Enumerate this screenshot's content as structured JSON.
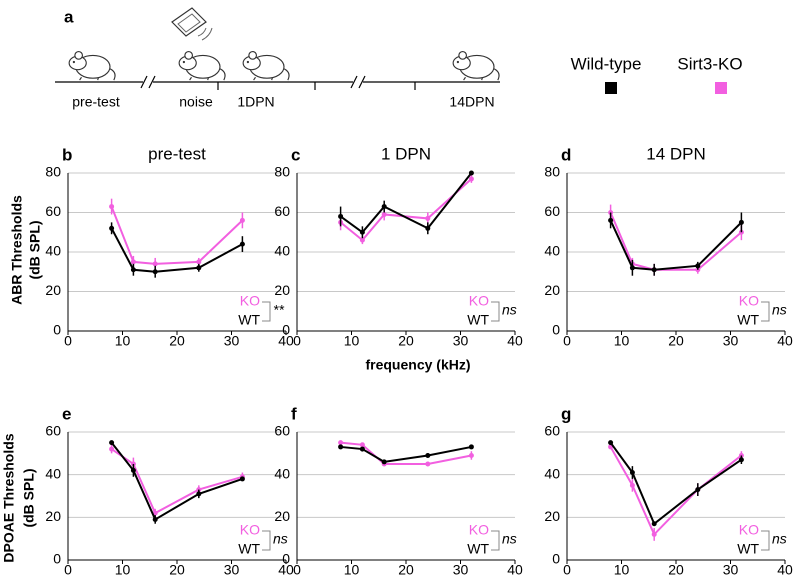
{
  "panel_a": {
    "letter": "a",
    "labels": [
      "pre-test",
      "noise",
      "1DPN",
      "14DPN"
    ]
  },
  "legend": [
    {
      "name": "Wild-type",
      "color": "#000000"
    },
    {
      "name": "Sirt3-KO",
      "color": "#f25fe0"
    }
  ],
  "row_labels": [
    [
      "ABR Thresholds",
      "(dB SPL)"
    ],
    [
      "DPOAE Thresholds",
      "(dB SPL)"
    ]
  ],
  "x_axis_label": "frequency (kHz)",
  "chart_data": [
    {
      "type": "line",
      "letter": "b",
      "title": "pre-test",
      "x": [
        8,
        12,
        16,
        24,
        32
      ],
      "xlim": [
        0,
        40
      ],
      "xticks": [
        0,
        10,
        20,
        30,
        40
      ],
      "ylim": [
        0,
        80
      ],
      "yticks": [
        0,
        20,
        40,
        60,
        80
      ],
      "grid": true,
      "annotation": "**",
      "series": [
        {
          "name": "KO",
          "color": "#f25fe0",
          "values": [
            63,
            35,
            34,
            35,
            56
          ],
          "errors": [
            4,
            3,
            3,
            2,
            4
          ]
        },
        {
          "name": "WT",
          "color": "#000000",
          "values": [
            52,
            31,
            30,
            32,
            44
          ],
          "errors": [
            3,
            3,
            3,
            2,
            4
          ]
        }
      ]
    },
    {
      "type": "line",
      "letter": "c",
      "title": "1 DPN",
      "x": [
        8,
        12,
        16,
        24,
        32
      ],
      "xlim": [
        0,
        40
      ],
      "xticks": [
        0,
        10,
        20,
        30,
        40
      ],
      "ylim": [
        0,
        80
      ],
      "yticks": [
        0,
        20,
        40,
        60,
        80
      ],
      "grid": true,
      "annotation": "ns",
      "series": [
        {
          "name": "KO",
          "color": "#f25fe0",
          "values": [
            55,
            46,
            59,
            57,
            77
          ],
          "errors": [
            4,
            2,
            3,
            3,
            2
          ]
        },
        {
          "name": "WT",
          "color": "#000000",
          "values": [
            58,
            50,
            63,
            52,
            80
          ],
          "errors": [
            5,
            3,
            3,
            3,
            1
          ]
        }
      ]
    },
    {
      "type": "line",
      "letter": "d",
      "title": "14 DPN",
      "x": [
        8,
        12,
        16,
        24,
        32
      ],
      "xlim": [
        0,
        40
      ],
      "xticks": [
        0,
        10,
        20,
        30,
        40
      ],
      "ylim": [
        0,
        80
      ],
      "yticks": [
        0,
        20,
        40,
        60,
        80
      ],
      "grid": true,
      "annotation": "ns",
      "series": [
        {
          "name": "KO",
          "color": "#f25fe0",
          "values": [
            60,
            34,
            31,
            31,
            50
          ],
          "errors": [
            4,
            3,
            3,
            2,
            4
          ]
        },
        {
          "name": "WT",
          "color": "#000000",
          "values": [
            56,
            32,
            31,
            33,
            55
          ],
          "errors": [
            4,
            4,
            3,
            2,
            5
          ]
        }
      ]
    },
    {
      "type": "line",
      "letter": "e",
      "x": [
        8,
        12,
        16,
        24,
        32
      ],
      "xlim": [
        0,
        40
      ],
      "xticks": [
        0,
        10,
        20,
        30,
        40
      ],
      "ylim": [
        0,
        60
      ],
      "yticks": [
        0,
        20,
        40,
        60
      ],
      "grid": true,
      "annotation": "ns",
      "series": [
        {
          "name": "KO",
          "color": "#f25fe0",
          "values": [
            52,
            45,
            22,
            33,
            39
          ],
          "errors": [
            2,
            3,
            2,
            2,
            2
          ]
        },
        {
          "name": "WT",
          "color": "#000000",
          "values": [
            55,
            42,
            19,
            31,
            38
          ],
          "errors": [
            1,
            3,
            2,
            2,
            1
          ]
        }
      ]
    },
    {
      "type": "line",
      "letter": "f",
      "x": [
        8,
        12,
        16,
        24,
        32
      ],
      "xlim": [
        0,
        40
      ],
      "xticks": [
        0,
        10,
        20,
        30,
        40
      ],
      "ylim": [
        0,
        60
      ],
      "yticks": [
        0,
        20,
        40,
        60
      ],
      "grid": true,
      "annotation": "ns",
      "series": [
        {
          "name": "KO",
          "color": "#f25fe0",
          "values": [
            55,
            54,
            45,
            45,
            49
          ],
          "errors": [
            1,
            1,
            1,
            1,
            2
          ]
        },
        {
          "name": "WT",
          "color": "#000000",
          "values": [
            53,
            52,
            46,
            49,
            53
          ],
          "errors": [
            1,
            1,
            1,
            1,
            1
          ]
        }
      ]
    },
    {
      "type": "line",
      "letter": "g",
      "x": [
        8,
        12,
        16,
        24,
        32
      ],
      "xlim": [
        0,
        40
      ],
      "xticks": [
        0,
        10,
        20,
        30,
        40
      ],
      "ylim": [
        0,
        60
      ],
      "yticks": [
        0,
        20,
        40,
        60
      ],
      "grid": true,
      "annotation": "ns",
      "series": [
        {
          "name": "KO",
          "color": "#f25fe0",
          "values": [
            53,
            35,
            12,
            33,
            49
          ],
          "errors": [
            1,
            3,
            3,
            3,
            2
          ]
        },
        {
          "name": "WT",
          "color": "#000000",
          "values": [
            55,
            41,
            17,
            33,
            47
          ],
          "errors": [
            1,
            3,
            1,
            3,
            2
          ]
        }
      ]
    }
  ]
}
